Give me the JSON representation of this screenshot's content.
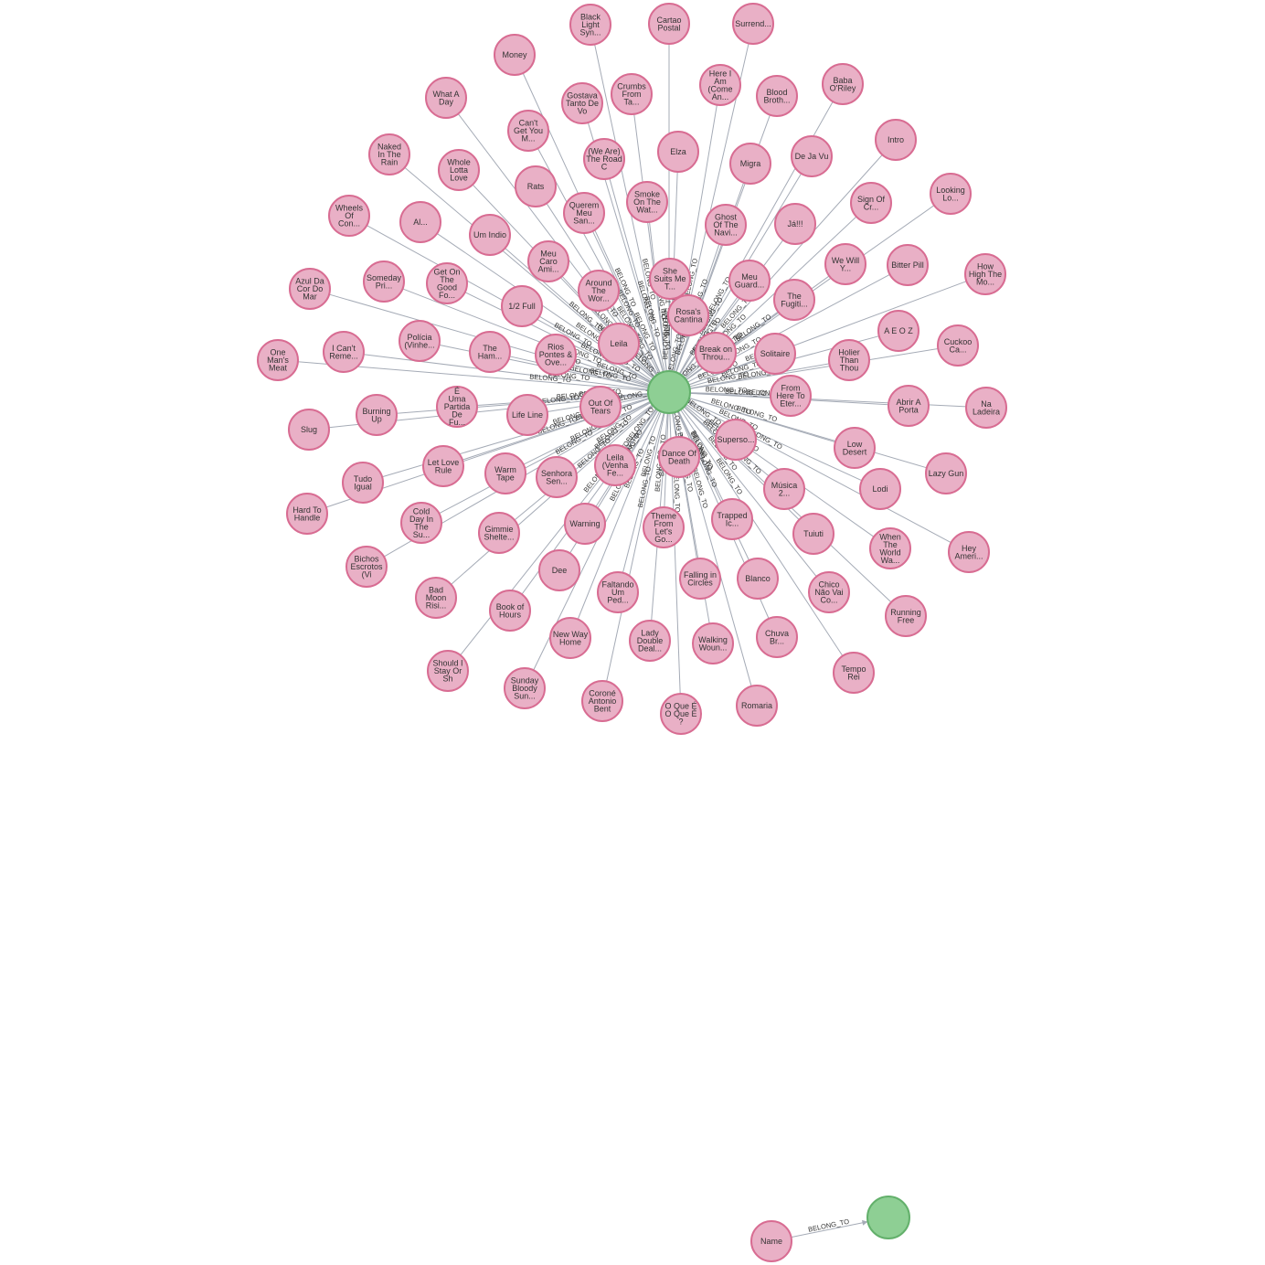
{
  "graph": {
    "relationship_label": "BELONG_TO",
    "colors": {
      "song_fill": "#e9b0c6",
      "song_stroke": "#d86c92",
      "hub_fill": "#8ecf94",
      "hub_stroke": "#63b06b",
      "edge": "#a5abb6"
    },
    "songs": [
      [
        "Black",
        "Light",
        "Syn..."
      ],
      [
        "Cartao",
        "Postal"
      ],
      [
        "Surrend..."
      ],
      [
        "Money"
      ],
      [
        "Gostava",
        "Tanto De",
        "Vo"
      ],
      [
        "Crumbs",
        "From",
        "Ta..."
      ],
      [
        "Here I",
        "Am",
        "(Come",
        "An..."
      ],
      [
        "Blood",
        "Broth..."
      ],
      [
        "Baba",
        "O'Riley"
      ],
      [
        "What A",
        "Day"
      ],
      [
        "Can't",
        "Get You",
        "M..."
      ],
      [
        "(We Are)",
        "The Road",
        "C"
      ],
      [
        "Elza"
      ],
      [
        "Migra"
      ],
      [
        "De Ja Vu"
      ],
      [
        "Intro"
      ],
      [
        "Naked",
        "In The",
        "Rain"
      ],
      [
        "Whole",
        "Lotta",
        "Love"
      ],
      [
        "Rats"
      ],
      [
        "Querem",
        "Meu",
        "San..."
      ],
      [
        "Smoke",
        "On The",
        "Wat..."
      ],
      [
        "Ghost",
        "Of The",
        "Navi..."
      ],
      [
        "Já!!!"
      ],
      [
        "Sign Of",
        "Cr..."
      ],
      [
        "Looking",
        "Lo..."
      ],
      [
        "Wheels",
        "Of",
        "Con..."
      ],
      [
        "Al..."
      ],
      [
        "Um Indio"
      ],
      [
        "Meu",
        "Caro",
        "Ami..."
      ],
      [
        "We Will",
        "Y..."
      ],
      [
        "Bitter Pill"
      ],
      [
        "How",
        "High The",
        "Mo..."
      ],
      [
        "Azul Da",
        "Cor Do",
        "Mar"
      ],
      [
        "Someday",
        "Pri..."
      ],
      [
        "Get On",
        "The",
        "Good",
        "Fo..."
      ],
      [
        "Around",
        "The",
        "Wor..."
      ],
      [
        "She",
        "Suits Me",
        "T..."
      ],
      [
        "Meu",
        "Guard..."
      ],
      [
        "The",
        "Fugiti..."
      ],
      [
        "1/2 Full"
      ],
      [
        "Rosa's",
        "Cantina"
      ],
      [
        "A E O Z"
      ],
      [
        "Cuckoo",
        "Ca..."
      ],
      [
        "One",
        "Man's",
        "Meat"
      ],
      [
        "I Can't",
        "Reme..."
      ],
      [
        "Polícia",
        "(Vinhe..."
      ],
      [
        "The",
        "Ham..."
      ],
      [
        "Rios",
        "Pontes &",
        "Ove..."
      ],
      [
        "Leila"
      ],
      [
        "Break on",
        "Throu..."
      ],
      [
        "Solitaire"
      ],
      [
        "Holier",
        "Than",
        "Thou"
      ],
      [
        "Slug"
      ],
      [
        "Burning",
        "Up"
      ],
      [
        "É",
        "Uma",
        "Partida",
        "De",
        "Fu..."
      ],
      [
        "Life Line"
      ],
      [
        "Out Of",
        "Tears"
      ],
      [
        "From",
        "Here To",
        "Eter..."
      ],
      [
        "Abrir A",
        "Porta"
      ],
      [
        "Na",
        "Ladeira"
      ],
      [
        "Low",
        "Desert"
      ],
      [
        "Superso..."
      ],
      [
        "Lazy Gun"
      ],
      [
        "Tudo",
        "Igual"
      ],
      [
        "Let Love",
        "Rule"
      ],
      [
        "Warm",
        "Tape"
      ],
      [
        "Senhora",
        "Sen..."
      ],
      [
        "Leila",
        "(Venha",
        "Fe..."
      ],
      [
        "Dance Of",
        "Death"
      ],
      [
        "Lodi"
      ],
      [
        "Música",
        "2..."
      ],
      [
        "Hard To",
        "Handle"
      ],
      [
        "Cold",
        "Day In",
        "The",
        "Su..."
      ],
      [
        "Gimmie",
        "Shelte..."
      ],
      [
        "Warning"
      ],
      [
        "Theme",
        "From",
        "Let's",
        "Go..."
      ],
      [
        "Trapped",
        "Ic..."
      ],
      [
        "Tuiuti"
      ],
      [
        "When",
        "The",
        "World",
        "Wa..."
      ],
      [
        "Hey",
        "Ameri..."
      ],
      [
        "Bichos",
        "Escrotos",
        "(Vi"
      ],
      [
        "Dee"
      ],
      [
        "Falling in",
        "Circles"
      ],
      [
        "Blanco"
      ],
      [
        "Chico",
        "Não Vai",
        "Co..."
      ],
      [
        "Running",
        "Free"
      ],
      [
        "Bad",
        "Moon",
        "Risi..."
      ],
      [
        "Book of",
        "Hours"
      ],
      [
        "Faltando",
        "Um",
        "Ped..."
      ],
      [
        "New Way",
        "Home"
      ],
      [
        "Lady",
        "Double",
        "Deal..."
      ],
      [
        "Walking",
        "Woun..."
      ],
      [
        "Chuva",
        "Br..."
      ],
      [
        "Tempo",
        "Rei"
      ],
      [
        "Should I",
        "Stay Or",
        "Sh"
      ],
      [
        "Sunday",
        "Bloody",
        "Sun..."
      ],
      [
        "Coroné",
        "Antonio",
        "Bent"
      ],
      [
        "O Que É",
        "O Que É",
        "?"
      ],
      [
        "Romaria"
      ]
    ],
    "separate_node": [
      "Name"
    ]
  }
}
